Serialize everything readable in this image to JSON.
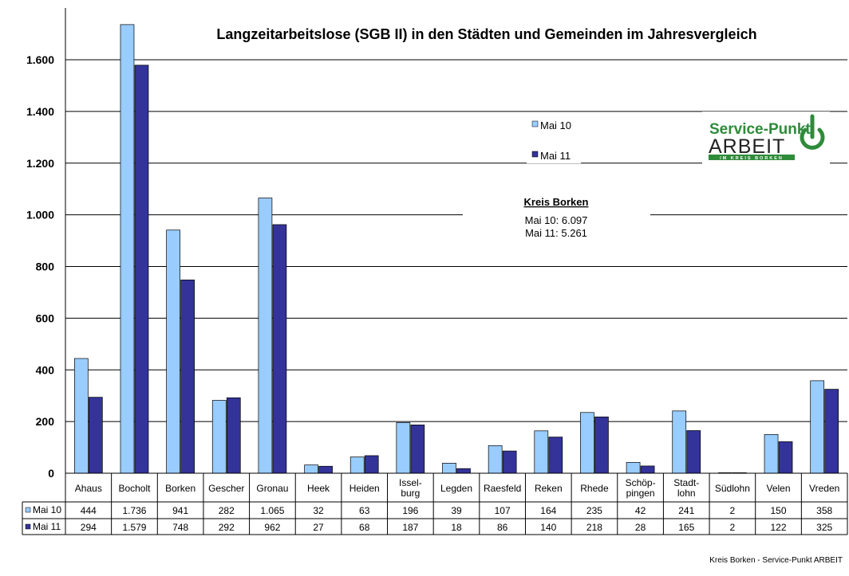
{
  "chart_data": {
    "type": "bar",
    "title": "Langzeitarbeitslose (SGB II) in den Städten und Gemeinden im Jahresvergleich",
    "categories": [
      "Ahaus",
      "Bocholt",
      "Borken",
      "Gescher",
      "Gronau",
      "Heek",
      "Heiden",
      "Issel-\nburg",
      "Legden",
      "Raesfeld",
      "Reken",
      "Rhede",
      "Schöp-\npingen",
      "Stadt-\nlohn",
      "Südlohn",
      "Velen",
      "Vreden"
    ],
    "series": [
      {
        "name": "Mai 10",
        "color": "#99ccff",
        "values": [
          444,
          1736,
          941,
          282,
          1065,
          32,
          63,
          196,
          39,
          107,
          164,
          235,
          42,
          241,
          2,
          150,
          358
        ],
        "labels": [
          "444",
          "1.736",
          "941",
          "282",
          "1.065",
          "32",
          "63",
          "196",
          "39",
          "107",
          "164",
          "235",
          "42",
          "241",
          "2",
          "150",
          "358"
        ]
      },
      {
        "name": "Mai 11",
        "color": "#333399",
        "values": [
          294,
          1579,
          748,
          292,
          962,
          27,
          68,
          187,
          18,
          86,
          140,
          218,
          28,
          165,
          2,
          122,
          325
        ],
        "labels": [
          "294",
          "1.579",
          "748",
          "292",
          "962",
          "27",
          "68",
          "187",
          "18",
          "86",
          "140",
          "218",
          "28",
          "165",
          "2",
          "122",
          "325"
        ]
      }
    ],
    "ylim": [
      0,
      1800
    ],
    "yticks": [
      0,
      200,
      400,
      600,
      800,
      1000,
      1200,
      1400,
      1600
    ],
    "ytick_labels": [
      "0",
      "200",
      "400",
      "600",
      "800",
      "1.000",
      "1.200",
      "1.400",
      "1.600"
    ],
    "grid": true,
    "legend_position": "top-right",
    "data_table": true
  },
  "annotation": {
    "heading": "Kreis Borken",
    "lines": [
      "Mai 10: 6.097",
      "Mai 11: 5.261"
    ]
  },
  "logo": {
    "line1": "Service-Punkt",
    "line2": "ARBEIT",
    "line3": "IM KREIS BORKEN",
    "green": "#2e8b3a"
  },
  "footer": "Kreis Borken - Service-Punkt ARBEIT"
}
